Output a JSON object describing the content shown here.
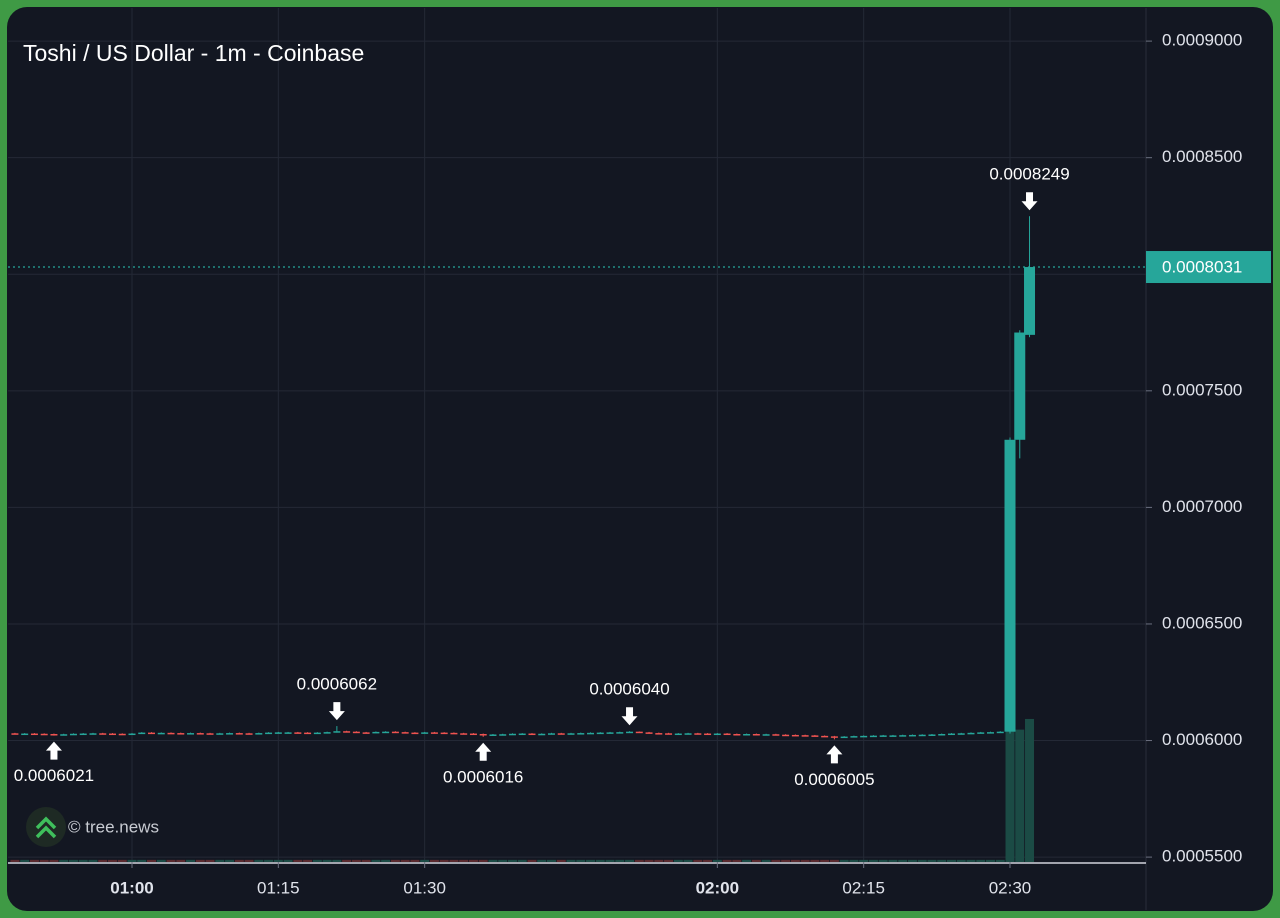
{
  "chart_data": {
    "type": "candlestick",
    "title": "Toshi / US Dollar - 1m - Coinbase",
    "watermark": "© tree.news",
    "x": [
      48,
      49,
      50,
      51,
      52,
      53,
      54,
      55,
      56,
      57,
      58,
      59,
      60,
      61,
      62,
      63,
      64,
      65,
      66,
      67,
      68,
      69,
      70,
      71,
      72,
      73,
      74,
      75,
      76,
      77,
      78,
      79,
      80,
      81,
      82,
      83,
      84,
      85,
      86,
      87,
      88,
      89,
      90,
      91,
      92,
      93,
      94,
      95,
      96,
      97,
      98,
      99,
      100,
      101,
      102,
      103,
      104,
      105,
      106,
      107,
      108,
      109,
      110,
      111,
      112,
      113,
      114,
      115,
      116,
      117,
      118,
      119,
      120,
      121,
      122,
      123,
      124,
      125,
      126,
      127,
      128,
      129,
      130,
      131,
      132,
      133,
      134,
      135,
      136,
      137,
      138,
      139,
      140,
      141,
      142,
      143,
      144,
      145,
      146,
      147,
      148,
      149,
      150,
      151,
      152
    ],
    "open": [
      0.0006031,
      0.000603,
      0.000603,
      0.0006029,
      0.0006028,
      0.0006027,
      0.0006027,
      0.0006029,
      0.000603,
      0.0006031,
      0.000603,
      0.0006029,
      0.0006028,
      0.000603,
      0.0006034,
      0.0006033,
      0.0006033,
      0.0006032,
      0.0006031,
      0.0006032,
      0.0006031,
      0.000603,
      0.0006031,
      0.0006032,
      0.0006031,
      0.000603,
      0.0006032,
      0.0006034,
      0.0006035,
      0.0006035,
      0.0006034,
      0.0006033,
      0.0006034,
      0.0006036,
      0.000604,
      0.0006038,
      0.0006035,
      0.0006034,
      0.0006037,
      0.0006038,
      0.0006036,
      0.0006034,
      0.0006033,
      0.0006035,
      0.0006034,
      0.0006033,
      0.0006031,
      0.000603,
      0.0006028,
      0.0006025,
      0.0006026,
      0.0006027,
      0.0006029,
      0.000603,
      0.0006028,
      0.0006029,
      0.0006031,
      0.000603,
      0.0006031,
      0.0006032,
      0.0006033,
      0.0006034,
      0.0006035,
      0.0006036,
      0.0006038,
      0.0006035,
      0.0006032,
      0.0006031,
      0.000603,
      0.000603,
      0.0006031,
      0.000603,
      0.0006029,
      0.000603,
      0.0006028,
      0.0006027,
      0.0006028,
      0.0006026,
      0.0006027,
      0.0006025,
      0.0006024,
      0.0006023,
      0.0006022,
      0.000602,
      0.0006018,
      0.0006015,
      0.0006017,
      0.0006019,
      0.000602,
      0.0006021,
      0.0006022,
      0.0006022,
      0.0006023,
      0.0006024,
      0.0006025,
      0.0006026,
      0.0006028,
      0.000603,
      0.0006031,
      0.0006033,
      0.0006035,
      0.0006036,
      0.0006038,
      0.000729,
      0.000774
    ],
    "high": [
      0.0006033,
      0.0006032,
      0.0006032,
      0.0006031,
      0.000603,
      0.0006029,
      0.0006031,
      0.0006032,
      0.0006033,
      0.0006033,
      0.0006032,
      0.0006031,
      0.0006032,
      0.0006036,
      0.0006036,
      0.0006035,
      0.0006035,
      0.0006034,
      0.0006034,
      0.0006034,
      0.0006033,
      0.0006033,
      0.0006034,
      0.0006034,
      0.0006033,
      0.0006034,
      0.0006036,
      0.0006037,
      0.0006037,
      0.0006037,
      0.0006036,
      0.0006036,
      0.0006038,
      0.0006062,
      0.0006042,
      0.000604,
      0.0006037,
      0.0006039,
      0.000604,
      0.000604,
      0.0006038,
      0.0006036,
      0.0006037,
      0.0006037,
      0.0006036,
      0.0006035,
      0.0006033,
      0.0006032,
      0.000603,
      0.0006028,
      0.0006029,
      0.0006031,
      0.0006032,
      0.0006032,
      0.0006031,
      0.0006033,
      0.0006033,
      0.0006033,
      0.0006034,
      0.0006035,
      0.0006036,
      0.0006037,
      0.0006038,
      0.000604,
      0.0006039,
      0.0006037,
      0.0006034,
      0.0006033,
      0.0006032,
      0.0006033,
      0.0006033,
      0.0006032,
      0.0006032,
      0.0006032,
      0.000603,
      0.000603,
      0.000603,
      0.0006029,
      0.0006029,
      0.0006027,
      0.0006026,
      0.0006025,
      0.0006024,
      0.0006022,
      0.000602,
      0.0006019,
      0.0006021,
      0.0006022,
      0.0006023,
      0.0006024,
      0.0006024,
      0.0006025,
      0.0006026,
      0.0006027,
      0.0006028,
      0.000603,
      0.0006032,
      0.0006033,
      0.0006035,
      0.0006037,
      0.0006038,
      0.000604,
      0.00073,
      0.000776,
      0.0008249
    ],
    "low": [
      0.0006028,
      0.0006028,
      0.0006027,
      0.0006026,
      0.0006021,
      0.0006025,
      0.0006025,
      0.0006027,
      0.0006028,
      0.0006028,
      0.0006027,
      0.0006026,
      0.0006026,
      0.0006028,
      0.0006031,
      0.0006031,
      0.000603,
      0.0006029,
      0.0006029,
      0.0006029,
      0.0006028,
      0.0006028,
      0.0006029,
      0.0006029,
      0.0006028,
      0.0006028,
      0.000603,
      0.0006032,
      0.0006033,
      0.0006032,
      0.0006031,
      0.0006031,
      0.0006032,
      0.0006034,
      0.0006036,
      0.0006033,
      0.0006032,
      0.0006032,
      0.0006035,
      0.0006034,
      0.0006032,
      0.0006031,
      0.0006031,
      0.0006032,
      0.0006031,
      0.0006029,
      0.0006028,
      0.0006026,
      0.0006016,
      0.0006023,
      0.0006024,
      0.0006025,
      0.0006027,
      0.0006026,
      0.0006026,
      0.0006027,
      0.0006028,
      0.0006028,
      0.0006029,
      0.000603,
      0.0006031,
      0.0006032,
      0.0006033,
      0.0006034,
      0.0006033,
      0.000603,
      0.0006029,
      0.0006028,
      0.0006028,
      0.0006028,
      0.0006028,
      0.0006027,
      0.0006027,
      0.0006026,
      0.0006025,
      0.0006025,
      0.0006024,
      0.0006024,
      0.0006023,
      0.0006022,
      0.0006021,
      0.000602,
      0.0006018,
      0.0006016,
      0.0006005,
      0.0006013,
      0.0006015,
      0.0006017,
      0.0006018,
      0.0006019,
      0.000602,
      0.000602,
      0.0006021,
      0.0006022,
      0.0006023,
      0.0006024,
      0.0006026,
      0.0006028,
      0.0006029,
      0.0006031,
      0.0006033,
      0.0006034,
      0.000603,
      0.000721,
      0.000773
    ],
    "close": [
      0.000603,
      0.000603,
      0.0006029,
      0.0006028,
      0.0006027,
      0.0006027,
      0.0006029,
      0.000603,
      0.0006031,
      0.000603,
      0.0006029,
      0.0006028,
      0.000603,
      0.0006034,
      0.0006033,
      0.0006033,
      0.0006032,
      0.0006031,
      0.0006032,
      0.0006031,
      0.000603,
      0.0006031,
      0.0006032,
      0.0006031,
      0.000603,
      0.0006032,
      0.0006034,
      0.0006035,
      0.0006035,
      0.0006034,
      0.0006033,
      0.0006034,
      0.0006036,
      0.000604,
      0.0006038,
      0.0006035,
      0.0006034,
      0.0006037,
      0.0006038,
      0.0006036,
      0.0006034,
      0.0006033,
      0.0006035,
      0.0006034,
      0.0006033,
      0.0006031,
      0.000603,
      0.0006028,
      0.0006025,
      0.0006026,
      0.0006027,
      0.0006029,
      0.000603,
      0.0006028,
      0.0006029,
      0.0006031,
      0.000603,
      0.0006031,
      0.0006032,
      0.0006033,
      0.0006034,
      0.0006035,
      0.0006036,
      0.0006038,
      0.0006035,
      0.0006032,
      0.0006031,
      0.000603,
      0.000603,
      0.0006031,
      0.000603,
      0.0006029,
      0.000603,
      0.0006028,
      0.0006027,
      0.0006028,
      0.0006026,
      0.0006027,
      0.0006025,
      0.0006024,
      0.0006023,
      0.0006022,
      0.000602,
      0.0006018,
      0.0006015,
      0.0006017,
      0.0006019,
      0.000602,
      0.0006021,
      0.0006022,
      0.0006022,
      0.0006023,
      0.0006024,
      0.0006025,
      0.0006026,
      0.0006028,
      0.000603,
      0.0006031,
      0.0006033,
      0.0006035,
      0.0006036,
      0.0006038,
      0.000729,
      0.000775,
      0.0008031
    ],
    "volume": [
      1,
      1,
      1,
      1,
      1,
      1,
      1,
      1,
      1,
      1,
      1,
      1,
      1,
      1,
      1,
      1,
      1,
      1,
      1,
      1,
      1,
      1,
      1,
      1,
      1,
      1,
      1,
      1,
      1,
      1,
      1,
      1,
      1,
      1,
      1,
      1,
      1,
      1,
      1,
      1,
      1,
      1,
      1,
      1,
      1,
      1,
      1,
      1,
      1,
      1,
      1,
      1,
      1,
      1,
      1,
      1,
      1,
      1,
      1,
      1,
      1,
      1,
      1,
      1,
      1,
      1,
      1,
      1,
      1,
      1,
      1,
      1,
      1,
      1,
      1,
      1,
      1,
      1,
      1,
      1,
      1,
      1,
      1,
      1,
      1,
      1,
      1,
      1,
      1,
      1,
      1,
      1,
      1,
      1,
      1,
      1,
      1,
      1,
      1,
      1,
      1,
      1,
      62,
      62,
      67
    ],
    "volume_lim": [
      0,
      400
    ],
    "up_color": "#26a69a",
    "down_color": "#ef5350",
    "volume_up_color": "#1b4b45",
    "volume_down_color": "#5a2a2f",
    "xlim": [
      47.29,
      163.94
    ],
    "xticks": [
      {
        "value": 60,
        "label": "01:00",
        "bold": true
      },
      {
        "value": 75,
        "label": "01:15"
      },
      {
        "value": 90,
        "label": "01:30"
      },
      {
        "value": 120,
        "label": "02:00",
        "bold": true
      },
      {
        "value": 135,
        "label": "02:15"
      },
      {
        "value": 150,
        "label": "02:30"
      }
    ],
    "ylim": [
      0.0005479,
      0.0009142
    ],
    "yticks": [
      {
        "value": 0.00055,
        "label": "0.0005500"
      },
      {
        "value": 0.0006,
        "label": "0.0006000"
      },
      {
        "value": 0.00065,
        "label": "0.0006500"
      },
      {
        "value": 0.0007,
        "label": "0.0007000"
      },
      {
        "value": 0.00075,
        "label": "0.0007500"
      },
      {
        "value": 0.0008,
        "label": "0.0008000"
      },
      {
        "value": 0.00085,
        "label": "0.0008500"
      },
      {
        "value": 0.0009,
        "label": "0.0009000"
      }
    ],
    "grid": true,
    "annotations": [
      {
        "x": 52,
        "value": 0.0006021,
        "direction": "up"
      },
      {
        "x": 81,
        "value": 0.0006062,
        "direction": "down"
      },
      {
        "x": 96,
        "value": 0.0006016,
        "direction": "up"
      },
      {
        "x": 111,
        "value": 0.000604,
        "label": "0.0006040",
        "direction": "down"
      },
      {
        "x": 132,
        "value": 0.0006005,
        "direction": "up"
      },
      {
        "x": 152,
        "value": 0.0008249,
        "direction": "down"
      }
    ]
  }
}
